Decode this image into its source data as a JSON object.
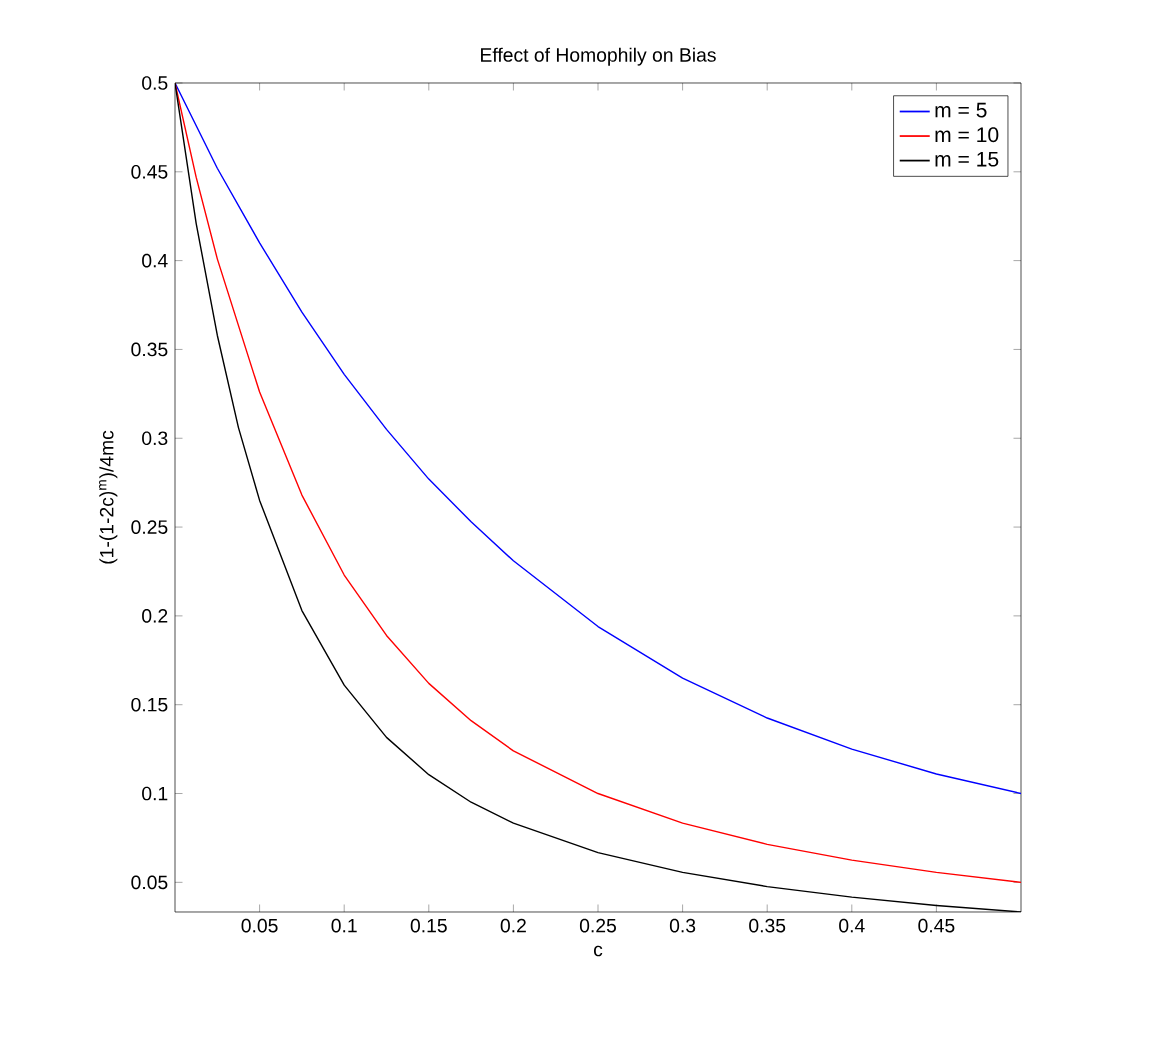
{
  "chart_data": {
    "type": "line",
    "title": "Effect of Homophily on Bias",
    "xlabel": "c",
    "ylabel": "(1-(1-2c)$^{m}$)/4mc",
    "xlim": [
      0,
      0.5
    ],
    "ylim": [
      0.0333,
      0.5
    ],
    "xticks": [
      0.05,
      0.1,
      0.15,
      0.2,
      0.25,
      0.3,
      0.35,
      0.4,
      0.45
    ],
    "yticks": [
      0.05,
      0.1,
      0.15,
      0.2,
      0.25,
      0.3,
      0.35,
      0.4,
      0.45,
      0.5
    ],
    "grid": false,
    "legend": "top right",
    "marker": "none",
    "line_style": "solid",
    "series": [
      {
        "name": "m = 5",
        "color": "#0000ff",
        "x": [
          0,
          0.025,
          0.05,
          0.075,
          0.1,
          0.125,
          0.15,
          0.175,
          0.2,
          0.25,
          0.3,
          0.35,
          0.4,
          0.45,
          0.5
        ],
        "values": [
          0.5,
          0.452,
          0.41,
          0.371,
          0.336,
          0.305,
          0.277,
          0.253,
          0.231,
          0.194,
          0.165,
          0.1425,
          0.125,
          0.111,
          0.1
        ]
      },
      {
        "name": "m = 10",
        "color": "#ff0000",
        "x": [
          0,
          0.0125,
          0.025,
          0.05,
          0.075,
          0.1,
          0.125,
          0.15,
          0.175,
          0.2,
          0.25,
          0.3,
          0.35,
          0.4,
          0.45,
          0.5
        ],
        "values": [
          0.5,
          0.447,
          0.401,
          0.326,
          0.268,
          0.223,
          0.189,
          0.162,
          0.141,
          0.124,
          0.1,
          0.0833,
          0.0714,
          0.0625,
          0.0556,
          0.05
        ]
      },
      {
        "name": "m = 15",
        "color": "#000000",
        "x": [
          0,
          0.0125,
          0.025,
          0.0375,
          0.05,
          0.075,
          0.1,
          0.125,
          0.15,
          0.175,
          0.2,
          0.25,
          0.3,
          0.35,
          0.4,
          0.45,
          0.5
        ],
        "values": [
          0.5,
          0.421,
          0.358,
          0.306,
          0.265,
          0.203,
          0.161,
          0.1316,
          0.1106,
          0.0951,
          0.0833,
          0.0667,
          0.0556,
          0.0476,
          0.0417,
          0.037,
          0.0333
        ]
      }
    ]
  }
}
